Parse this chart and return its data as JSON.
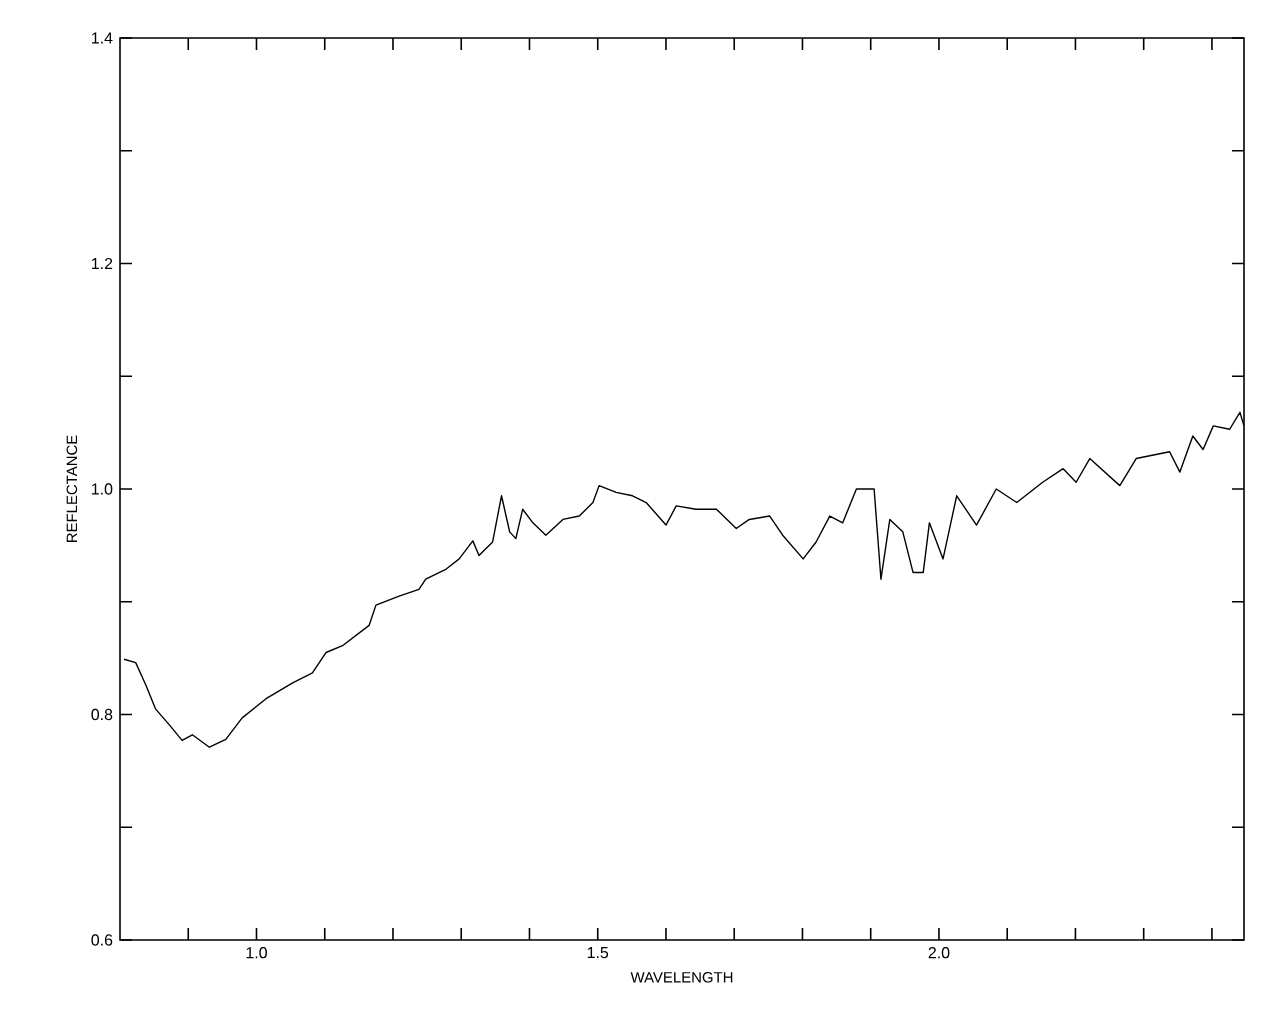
{
  "chart_data": {
    "type": "line",
    "xlabel": "WAVELENGTH",
    "ylabel": "REFLECTANCE",
    "xlim": [
      0.8,
      2.447
    ],
    "ylim": [
      0.6,
      1.4
    ],
    "xticks": [
      {
        "value": 0.9,
        "label": null
      },
      {
        "value": 1.0,
        "label": "1.0"
      },
      {
        "value": 1.1,
        "label": null
      },
      {
        "value": 1.2,
        "label": null
      },
      {
        "value": 1.3,
        "label": null
      },
      {
        "value": 1.4,
        "label": null
      },
      {
        "value": 1.5,
        "label": "1.5"
      },
      {
        "value": 1.6,
        "label": null
      },
      {
        "value": 1.7,
        "label": null
      },
      {
        "value": 1.8,
        "label": null
      },
      {
        "value": 1.9,
        "label": null
      },
      {
        "value": 2.0,
        "label": "2.0"
      },
      {
        "value": 2.1,
        "label": null
      },
      {
        "value": 2.2,
        "label": null
      },
      {
        "value": 2.3,
        "label": null
      },
      {
        "value": 2.4,
        "label": null
      }
    ],
    "yticks": [
      {
        "value": 0.6,
        "label": "0.6"
      },
      {
        "value": 0.7,
        "label": null
      },
      {
        "value": 0.8,
        "label": "0.8"
      },
      {
        "value": 0.9,
        "label": null
      },
      {
        "value": 1.0,
        "label": "1.0"
      },
      {
        "value": 1.1,
        "label": null
      },
      {
        "value": 1.2,
        "label": "1.2"
      },
      {
        "value": 1.3,
        "label": null
      },
      {
        "value": 1.4,
        "label": "1.4"
      }
    ],
    "grid": false,
    "marker": "none",
    "line_style": "solid",
    "series": [
      {
        "color": "#000000",
        "x": [
          0.806,
          0.823,
          0.838,
          0.852,
          0.872,
          0.891,
          0.906,
          0.931,
          0.955,
          0.979,
          1.014,
          1.053,
          1.082,
          1.102,
          1.126,
          1.165,
          1.175,
          1.209,
          1.238,
          1.248,
          1.278,
          1.297,
          1.317,
          1.326,
          1.346,
          1.359,
          1.371,
          1.38,
          1.39,
          1.405,
          1.424,
          1.449,
          1.473,
          1.493,
          1.502,
          1.527,
          1.551,
          1.571,
          1.6,
          1.615,
          1.644,
          1.674,
          1.703,
          1.722,
          1.752,
          1.771,
          1.801,
          1.82,
          1.84,
          1.859,
          1.879,
          1.889,
          1.905,
          1.915,
          1.928,
          1.947,
          1.962,
          1.977,
          1.986,
          2.006,
          2.026,
          2.055,
          2.084,
          2.114,
          2.152,
          2.182,
          2.201,
          2.221,
          2.265,
          2.289,
          2.338,
          2.353,
          2.372,
          2.387,
          2.402,
          2.426,
          2.441,
          2.447
        ],
        "values": [
          0.849,
          0.846,
          0.826,
          0.805,
          0.791,
          0.777,
          0.782,
          0.771,
          0.778,
          0.797,
          0.814,
          0.828,
          0.837,
          0.855,
          0.861,
          0.879,
          0.897,
          0.905,
          0.911,
          0.92,
          0.929,
          0.938,
          0.954,
          0.941,
          0.953,
          0.994,
          0.962,
          0.956,
          0.982,
          0.97,
          0.959,
          0.973,
          0.976,
          0.988,
          1.003,
          0.997,
          0.994,
          0.988,
          0.968,
          0.985,
          0.982,
          0.982,
          0.965,
          0.973,
          0.976,
          0.959,
          0.938,
          0.953,
          0.976,
          0.97,
          1.0,
          1.0,
          1.0,
          0.92,
          0.973,
          0.962,
          0.926,
          0.926,
          0.97,
          0.938,
          0.994,
          0.968,
          1.0,
          0.988,
          1.006,
          1.018,
          1.006,
          1.027,
          1.003,
          1.027,
          1.033,
          1.015,
          1.047,
          1.035,
          1.056,
          1.053,
          1.068,
          1.056
        ]
      }
    ]
  }
}
